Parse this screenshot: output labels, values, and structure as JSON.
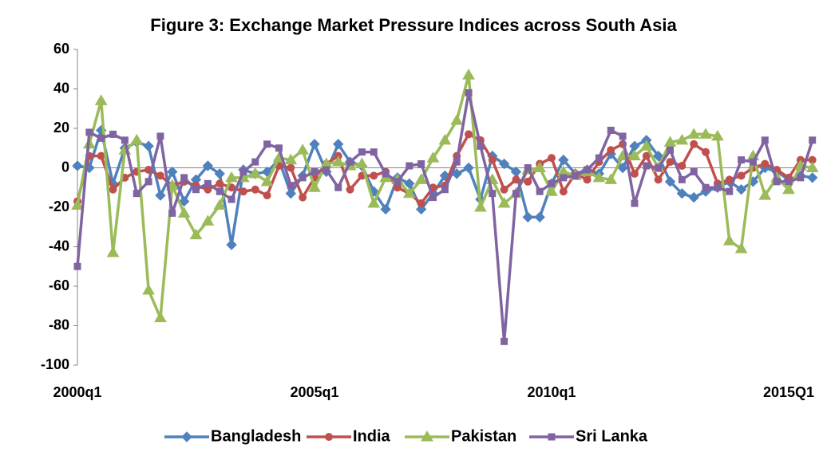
{
  "chart_data": {
    "type": "line",
    "title": "Figure 3: Exchange Market Pressure Indices across South Asia",
    "categories": [
      "2000q1",
      null,
      null,
      null,
      null,
      null,
      null,
      null,
      null,
      null,
      null,
      null,
      null,
      null,
      null,
      null,
      null,
      null,
      null,
      null,
      "2005q1",
      null,
      null,
      null,
      null,
      null,
      null,
      null,
      null,
      null,
      null,
      null,
      null,
      null,
      null,
      null,
      null,
      null,
      null,
      null,
      "2010q1",
      null,
      null,
      null,
      null,
      null,
      null,
      null,
      null,
      null,
      null,
      null,
      null,
      null,
      null,
      null,
      null,
      null,
      null,
      null,
      "2015Q1",
      null,
      null
    ],
    "ylim": [
      -100,
      60
    ],
    "yticks": [
      -100,
      -80,
      -60,
      -40,
      -20,
      0,
      20,
      40,
      60
    ],
    "grid": false,
    "legend": "bottom",
    "series": [
      {
        "name": "Bangladesh",
        "color": "#4f81bd",
        "marker": "diamond",
        "values": [
          1,
          0,
          19,
          -8,
          10,
          13,
          11,
          -14,
          -2,
          -17,
          -6,
          1,
          -3,
          -39,
          -1,
          -3,
          -2,
          4,
          -13,
          -4,
          12,
          -2,
          12,
          3,
          1,
          -12,
          -21,
          -5,
          -8,
          -21,
          -13,
          -4,
          -3,
          0,
          -16,
          6,
          2,
          -2,
          -25,
          -25,
          -8,
          4,
          -3,
          -1,
          -3,
          7,
          0,
          11,
          14,
          6,
          -7,
          -13,
          -15,
          -12,
          -10,
          -7,
          -11,
          -7,
          0,
          -2,
          -6,
          -4,
          -5
        ]
      },
      {
        "name": "India",
        "color": "#c0504d",
        "marker": "circle",
        "values": [
          -17,
          6,
          6,
          -11,
          -5,
          -2,
          -1,
          -4,
          -9,
          -7,
          -9,
          -11,
          -8,
          -10,
          -12,
          -11,
          -14,
          1,
          0,
          -15,
          -5,
          2,
          6,
          -11,
          -4,
          -4,
          -2,
          -10,
          -13,
          -18,
          -10,
          -9,
          6,
          17,
          14,
          4,
          -11,
          -6,
          -7,
          2,
          5,
          -12,
          -3,
          -6,
          3,
          9,
          12,
          -3,
          6,
          -6,
          3,
          1,
          12,
          8,
          -8,
          -6,
          -4,
          0,
          2,
          -1,
          -5,
          4,
          4
        ]
      },
      {
        "name": "Pakistan",
        "color": "#9bbb59",
        "marker": "triangle",
        "values": [
          -19,
          12,
          34,
          -43,
          9,
          14,
          -62,
          -76,
          -9,
          -23,
          -34,
          -27,
          -19,
          -5,
          -5,
          -3,
          -7,
          5,
          4,
          9,
          -10,
          2,
          3,
          1,
          2,
          -18,
          -5,
          -6,
          -13,
          -6,
          5,
          14,
          24,
          47,
          -20,
          -6,
          -18,
          -13,
          -1,
          0,
          -12,
          -2,
          -4,
          -2,
          -5,
          -6,
          6,
          6,
          11,
          0,
          13,
          14,
          17,
          17,
          16,
          -37,
          -41,
          6,
          -14,
          -5,
          -11,
          1,
          0
        ]
      },
      {
        "name": "Sri Lanka",
        "color": "#8064a2",
        "marker": "square",
        "values": [
          -50,
          18,
          15,
          17,
          14,
          -13,
          -7,
          16,
          -23,
          -5,
          -11,
          -8,
          -12,
          -16,
          -2,
          3,
          12,
          10,
          -9,
          -5,
          -2,
          -1,
          -10,
          3,
          8,
          8,
          -3,
          -7,
          1,
          2,
          -15,
          -11,
          3,
          38,
          11,
          -13,
          -88,
          -13,
          0,
          -12,
          -8,
          -5,
          -4,
          -1,
          5,
          19,
          16,
          -18,
          1,
          0,
          9,
          -6,
          -2,
          -10,
          -10,
          -12,
          4,
          3,
          14,
          -7,
          -7,
          -5,
          14
        ]
      }
    ]
  }
}
